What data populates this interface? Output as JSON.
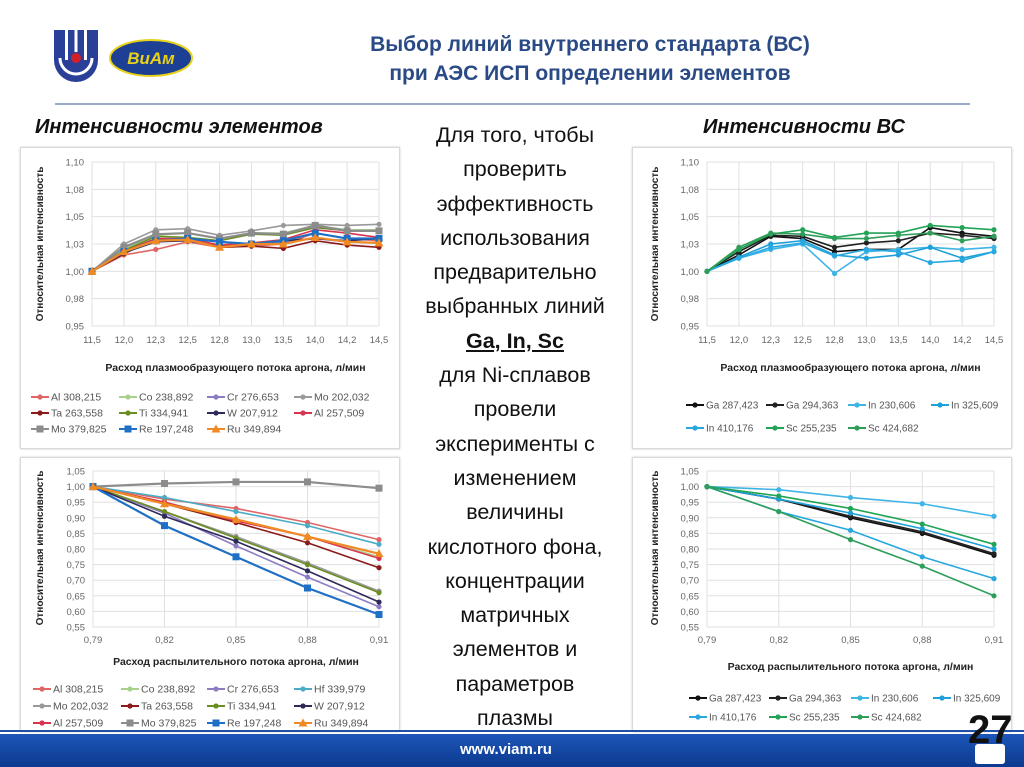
{
  "header": {
    "title_line1": "Выбор линий внутреннего стандарта (ВС)",
    "title_line2": "при АЭС ИСП определении элементов",
    "logo_left": "institute emblem",
    "logo_right": "ВИАМ"
  },
  "left_heading": "Интенсивности элементов",
  "right_heading": "Интенсивности ВС",
  "middle_text": {
    "lines_before": [
      "Для того, чтобы",
      "проверить",
      "эффективность",
      "использования",
      "предварительно",
      "выбранных линий"
    ],
    "highlight": "Ga, In, Sc",
    "lines_after": [
      "для Ni-сплавов",
      "провели",
      "эксперименты с",
      "изменением",
      "величины",
      "кислотного фона,",
      "концентрации",
      "матричных",
      "элементов и",
      "параметров",
      "плазмы"
    ]
  },
  "footer": {
    "url": "www.viam.ru",
    "page_number": "27"
  },
  "colors": {
    "title": "#2a4a86",
    "footer": "#1d56b8"
  },
  "chart_data": [
    {
      "id": "elements-plasma",
      "type": "line",
      "ylabel": "Относительная  интенсивность",
      "xlabel": "Расход плазмообразующего потока аргона, л/мин",
      "categories": [
        "11,5",
        "12,0",
        "12,3",
        "12,5",
        "12,8",
        "13,0",
        "13,5",
        "14,0",
        "14,2",
        "14,5"
      ],
      "yticks": [
        "0,95",
        "0,98",
        "1,00",
        "1,03",
        "1,05",
        "1,08",
        "1,10"
      ],
      "ylim": [
        0.95,
        1.1
      ],
      "grid": true,
      "legend_position": "bottom",
      "series": [
        {
          "name": "Al 308,215",
          "color": "#e06666",
          "marker": "circle",
          "values": [
            1.0,
            1.015,
            1.02,
            1.027,
            1.022,
            1.023,
            1.025,
            1.035,
            1.03,
            1.028
          ]
        },
        {
          "name": "Co 238,892",
          "color": "#a9d18e",
          "marker": "circle",
          "values": [
            1.0,
            1.02,
            1.033,
            1.035,
            1.03,
            1.035,
            1.035,
            1.042,
            1.038,
            1.038
          ]
        },
        {
          "name": "Cr 276,653",
          "color": "#8e7cc3",
          "marker": "circle",
          "values": [
            1.0,
            1.018,
            1.028,
            1.028,
            1.023,
            1.024,
            1.027,
            1.03,
            1.027,
            1.026
          ]
        },
        {
          "name": "Mo 202,032",
          "color": "#999999",
          "marker": "circle",
          "values": [
            1.0,
            1.025,
            1.038,
            1.039,
            1.033,
            1.037,
            1.042,
            1.043,
            1.042,
            1.043
          ]
        },
        {
          "name": "Ta 263,558",
          "color": "#8b1a1a",
          "marker": "circle",
          "values": [
            1.0,
            1.016,
            1.03,
            1.029,
            1.022,
            1.023,
            1.021,
            1.028,
            1.024,
            1.022
          ]
        },
        {
          "name": "Ti 334,941",
          "color": "#6b8e23",
          "marker": "circle",
          "values": [
            1.0,
            1.019,
            1.032,
            1.031,
            1.028,
            1.034,
            1.033,
            1.04,
            1.037,
            1.037
          ]
        },
        {
          "name": "W 207,912",
          "color": "#2e2a5a",
          "marker": "circle",
          "values": [
            1.0,
            1.017,
            1.027,
            1.028,
            1.023,
            1.024,
            1.028,
            1.03,
            1.028,
            1.03
          ]
        },
        {
          "name": "Al 257,509",
          "color": "#d9344f",
          "marker": "circle",
          "values": [
            1.0,
            1.018,
            1.03,
            1.03,
            1.024,
            1.026,
            1.029,
            1.038,
            1.035,
            1.031
          ]
        },
        {
          "name": "Mo 379,825",
          "color": "#8c8c8c",
          "marker": "square",
          "values": [
            1.0,
            1.022,
            1.034,
            1.035,
            1.03,
            1.035,
            1.034,
            1.042,
            1.037,
            1.037
          ]
        },
        {
          "name": "Re 197,248",
          "color": "#1f6fc5",
          "marker": "square",
          "values": [
            1.0,
            1.018,
            1.028,
            1.03,
            1.027,
            1.025,
            1.028,
            1.035,
            1.03,
            1.03
          ]
        },
        {
          "name": "Ru 349,894",
          "color": "#f08a24",
          "marker": "triangle",
          "values": [
            1.0,
            1.018,
            1.028,
            1.029,
            1.022,
            1.025,
            1.025,
            1.031,
            1.027,
            1.026
          ]
        }
      ]
    },
    {
      "id": "elements-nebulizer",
      "type": "line",
      "ylabel": "Относительная  интенсивность",
      "xlabel": "Расход распылительного потока аргона, л/мин",
      "categories": [
        "0,79",
        "0,82",
        "0,85",
        "0,88",
        "0,91"
      ],
      "yticks": [
        "0,55",
        "0,60",
        "0,65",
        "0,70",
        "0,75",
        "0,80",
        "0,85",
        "0,90",
        "0,95",
        "1,00",
        "1,05"
      ],
      "ylim": [
        0.55,
        1.05
      ],
      "grid": true,
      "legend_position": "bottom",
      "series": [
        {
          "name": "Al 308,215",
          "color": "#e06666",
          "marker": "circle",
          "values": [
            1,
            0.96,
            0.93,
            0.885,
            0.83
          ]
        },
        {
          "name": "Co 238,892",
          "color": "#a9d18e",
          "marker": "circle",
          "values": [
            1,
            0.95,
            0.895,
            0.84,
            0.775
          ]
        },
        {
          "name": "Cr 276,653",
          "color": "#8e7cc3",
          "marker": "circle",
          "values": [
            1,
            0.915,
            0.81,
            0.71,
            0.615
          ]
        },
        {
          "name": "Hf 339,979",
          "color": "#4bacc6",
          "marker": "circle",
          "values": [
            1,
            0.965,
            0.92,
            0.875,
            0.815
          ]
        },
        {
          "name": "Mo 202,032",
          "color": "#999999",
          "marker": "circle",
          "values": [
            1,
            0.92,
            0.84,
            0.755,
            0.665
          ]
        },
        {
          "name": "Ta 263,558",
          "color": "#8b1a1a",
          "marker": "circle",
          "values": [
            1,
            0.945,
            0.885,
            0.82,
            0.74
          ]
        },
        {
          "name": "Ti 334,941",
          "color": "#6b8e23",
          "marker": "circle",
          "values": [
            1,
            0.92,
            0.835,
            0.75,
            0.66
          ]
        },
        {
          "name": "W 207,912",
          "color": "#2e2a5a",
          "marker": "circle",
          "values": [
            1,
            0.905,
            0.825,
            0.73,
            0.63
          ]
        },
        {
          "name": "Al 257,509",
          "color": "#d9344f",
          "marker": "circle",
          "values": [
            1,
            0.95,
            0.89,
            0.84,
            0.77
          ]
        },
        {
          "name": "Mo 379,825",
          "color": "#8c8c8c",
          "marker": "square",
          "values": [
            1,
            1.01,
            1.015,
            1.015,
            0.995
          ]
        },
        {
          "name": "Re 197,248",
          "color": "#1f6fc5",
          "marker": "square",
          "values": [
            1,
            0.875,
            0.775,
            0.675,
            0.59
          ]
        },
        {
          "name": "Ru 349,894",
          "color": "#f08a24",
          "marker": "triangle",
          "values": [
            1,
            0.945,
            0.895,
            0.84,
            0.785
          ]
        }
      ]
    },
    {
      "id": "standards-plasma",
      "type": "line",
      "ylabel": "Относительная  интенсивность",
      "xlabel": "Расход плазмообразующего потока аргона, л/мин",
      "categories": [
        "11,5",
        "12,0",
        "12,3",
        "12,5",
        "12,8",
        "13,0",
        "13,5",
        "14,0",
        "14,2",
        "14,5"
      ],
      "yticks": [
        "0,95",
        "0,98",
        "1,00",
        "1,03",
        "1,05",
        "1,08",
        "1,10"
      ],
      "ylim": [
        0.95,
        1.1
      ],
      "grid": true,
      "legend_position": "bottom",
      "series": [
        {
          "name": "Ga 287,423",
          "color": "#111111",
          "marker": "circle",
          "values": [
            1,
            1.015,
            1.032,
            1.03,
            1.018,
            1.02,
            1.02,
            1.04,
            1.035,
            1.032
          ]
        },
        {
          "name": "Ga 294,363",
          "color": "#222222",
          "marker": "circle",
          "values": [
            1,
            1.018,
            1.033,
            1.032,
            1.022,
            1.026,
            1.028,
            1.035,
            1.033,
            1.03
          ]
        },
        {
          "name": "In 230,606",
          "color": "#3fb4e6",
          "marker": "circle",
          "values": [
            1,
            1.012,
            1.02,
            1.025,
            0.998,
            1.018,
            1.02,
            1.022,
            1.02,
            1.022
          ]
        },
        {
          "name": "In 325,609",
          "color": "#1ea0d8",
          "marker": "circle",
          "values": [
            1,
            1.013,
            1.025,
            1.028,
            1.015,
            1.012,
            1.015,
            1.022,
            1.012,
            1.018
          ]
        },
        {
          "name": "In 410,176",
          "color": "#29a8df",
          "marker": "circle",
          "values": [
            1,
            1.012,
            1.022,
            1.026,
            1.014,
            1.02,
            1.018,
            1.008,
            1.01,
            1.018
          ]
        },
        {
          "name": "Sc 255,235",
          "color": "#22a355",
          "marker": "circle",
          "values": [
            1,
            1.02,
            1.034,
            1.038,
            1.031,
            1.035,
            1.035,
            1.042,
            1.04,
            1.038
          ]
        },
        {
          "name": "Sc 424,682",
          "color": "#2e9e5a",
          "marker": "circle",
          "values": [
            1,
            1.022,
            1.035,
            1.034,
            1.03,
            1.03,
            1.033,
            1.035,
            1.028,
            1.032
          ]
        }
      ]
    },
    {
      "id": "standards-nebulizer",
      "type": "line",
      "ylabel": "Относительная  интенсивность",
      "xlabel": "Расход распылительного потока аргона, л/мин",
      "categories": [
        "0,79",
        "0,82",
        "0,85",
        "0,88",
        "0,91"
      ],
      "yticks": [
        "0,55",
        "0,60",
        "0,65",
        "0,70",
        "0,75",
        "0,80",
        "0,85",
        "0,90",
        "0,95",
        "1,00",
        "1,05"
      ],
      "ylim": [
        0.55,
        1.05
      ],
      "grid": true,
      "legend_position": "bottom",
      "series": [
        {
          "name": "Ga 287,423",
          "color": "#111111",
          "marker": "circle",
          "values": [
            1,
            0.96,
            0.9,
            0.85,
            0.78
          ]
        },
        {
          "name": "Ga 294,363",
          "color": "#222222",
          "marker": "circle",
          "values": [
            1,
            0.96,
            0.905,
            0.855,
            0.785
          ]
        },
        {
          "name": "In 230,606",
          "color": "#3fb4e6",
          "marker": "circle",
          "values": [
            1,
            0.99,
            0.965,
            0.945,
            0.905
          ]
        },
        {
          "name": "In 325,609",
          "color": "#1ea0d8",
          "marker": "circle",
          "values": [
            1,
            0.96,
            0.915,
            0.865,
            0.8
          ]
        },
        {
          "name": "In 410,176",
          "color": "#29a8df",
          "marker": "circle",
          "values": [
            1,
            0.92,
            0.86,
            0.775,
            0.705
          ]
        },
        {
          "name": "Sc 255,235",
          "color": "#22a355",
          "marker": "circle",
          "values": [
            1,
            0.97,
            0.93,
            0.88,
            0.815
          ]
        },
        {
          "name": "Sc 424,682",
          "color": "#2e9e5a",
          "marker": "circle",
          "values": [
            1,
            0.92,
            0.83,
            0.745,
            0.65
          ]
        }
      ]
    }
  ]
}
